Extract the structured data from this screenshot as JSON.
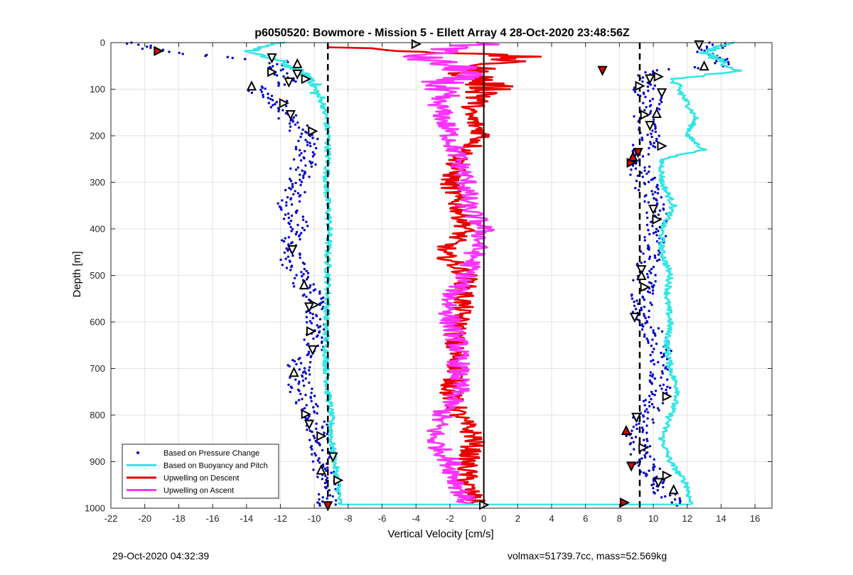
{
  "chart_data": {
    "type": "scatter",
    "title": "p6050520: Bowmore - Mission 5 - Ellett Array 4 28-Oct-2020 23:48:56Z",
    "xlabel": "Vertical Velocity [cm/s]",
    "ylabel": "Depth [m]",
    "xlim": [
      -22,
      17
    ],
    "ylim": [
      0,
      1000
    ],
    "y_reversed": true,
    "grid": true,
    "xticks": [
      "-22",
      "-20",
      "-18",
      "-16",
      "-14",
      "-12",
      "-10",
      "-8",
      "-6",
      "-4",
      "-2",
      "0",
      "2",
      "4",
      "6",
      "8",
      "10",
      "12",
      "14",
      "16"
    ],
    "yticks": [
      "0",
      "100",
      "200",
      "300",
      "400",
      "500",
      "600",
      "700",
      "800",
      "900",
      "1000"
    ],
    "legend_position": "bottom-left",
    "legend": [
      {
        "label": "Based on Pressure Change",
        "color": "#0000cc",
        "style": "dot"
      },
      {
        "label": "Based on Buoyancy and Pitch",
        "color": "#33e6e6",
        "style": "line"
      },
      {
        "label": "Upwelling on Descent",
        "color": "#e60000",
        "style": "line"
      },
      {
        "label": "Upwelling on Ascent",
        "color": "#ff33ff",
        "style": "line"
      }
    ],
    "vertical_reference_lines": [
      {
        "x": -9.2,
        "style": "dashed",
        "color": "#000000"
      },
      {
        "x": 0,
        "style": "solid",
        "color": "#000000"
      },
      {
        "x": 9.2,
        "style": "dashed",
        "color": "#000000"
      }
    ],
    "series": [
      {
        "name": "Based on Pressure Change (descent)",
        "color": "#0000cc",
        "depth": [
          0,
          20,
          40,
          60,
          80,
          100,
          130,
          160,
          200,
          250,
          300,
          350,
          400,
          450,
          500,
          550,
          600,
          650,
          700,
          750,
          800,
          850,
          900,
          950,
          990
        ],
        "velocity": [
          -21,
          -19,
          -12,
          -12.5,
          -11,
          -13.5,
          -12,
          -11.5,
          -10.5,
          -10.5,
          -11,
          -11.5,
          -11,
          -11.5,
          -11,
          -10,
          -9.8,
          -10,
          -11,
          -10.8,
          -10,
          -9.6,
          -9.5,
          -9.2,
          -9.2
        ]
      },
      {
        "name": "Based on Pressure Change (ascent)",
        "color": "#0000cc",
        "depth": [
          0,
          20,
          50,
          60,
          80,
          100,
          130,
          160,
          200,
          250,
          300,
          350,
          400,
          450,
          500,
          550,
          600,
          650,
          700,
          750,
          800,
          850,
          900,
          950,
          990
        ],
        "velocity": [
          14,
          13,
          14.5,
          9.5,
          10,
          9.5,
          10,
          9.5,
          9.8,
          9,
          9.5,
          10,
          10.3,
          9.8,
          9.5,
          9.4,
          9.5,
          10.5,
          10.5,
          10.5,
          9.5,
          9,
          9.5,
          10.5,
          11
        ]
      },
      {
        "name": "Based on Buoyancy and Pitch (descent)",
        "color": "#33e6e6",
        "depth": [
          0,
          20,
          40,
          60,
          80,
          100,
          130,
          160,
          200,
          250,
          300,
          350,
          400,
          450,
          500,
          550,
          600,
          650,
          700,
          750,
          800,
          850,
          900,
          950,
          990
        ],
        "velocity": [
          -12,
          -14,
          -12,
          -11,
          -10,
          -10,
          -9.5,
          -9.3,
          -9.2,
          -9.2,
          -9.3,
          -9.2,
          -9.1,
          -9.2,
          -9.2,
          -9.2,
          -9.3,
          -9.3,
          -9.3,
          -9.2,
          -9.0,
          -9.0,
          -8.8,
          -8.6,
          -8.5
        ]
      },
      {
        "name": "Based on Buoyancy and Pitch (ascent)",
        "color": "#33e6e6",
        "depth": [
          0,
          20,
          40,
          60,
          80,
          100,
          130,
          160,
          200,
          230,
          250,
          300,
          350,
          400,
          450,
          500,
          550,
          600,
          650,
          700,
          750,
          800,
          850,
          900,
          950,
          990
        ],
        "velocity": [
          14.5,
          13,
          14,
          15,
          11,
          11.5,
          12,
          12.5,
          12,
          13,
          10.5,
          10.5,
          11.2,
          10.5,
          10.5,
          11,
          10.8,
          11,
          10.8,
          11,
          11.5,
          11,
          10.5,
          11,
          12,
          12.2
        ]
      },
      {
        "name": "Upwelling on Descent",
        "color": "#e60000",
        "depth": [
          10,
          30,
          60,
          100,
          150,
          200,
          250,
          300,
          350,
          400,
          450,
          500,
          550,
          600,
          650,
          700,
          750,
          800,
          850,
          900,
          950,
          990
        ],
        "velocity": [
          -8,
          2,
          -1,
          0.5,
          -1,
          0,
          -1.5,
          -2,
          -1.5,
          -1,
          -2.5,
          -1,
          -1.2,
          -1.5,
          -1.8,
          -1.5,
          -2,
          -1.5,
          -0.5,
          -1,
          -1,
          -0.5
        ]
      },
      {
        "name": "Upwelling on Ascent",
        "color": "#ff33ff",
        "depth": [
          0,
          30,
          60,
          100,
          150,
          200,
          250,
          300,
          350,
          400,
          450,
          500,
          550,
          600,
          650,
          700,
          750,
          800,
          850,
          900,
          950,
          990
        ],
        "velocity": [
          0,
          -4,
          -1,
          -3,
          -2.5,
          -2,
          -1.5,
          -1,
          -1,
          0,
          -0.5,
          -1,
          -2,
          -2,
          -1.5,
          -1.5,
          -1.5,
          -2.5,
          -3,
          -2,
          -1.5,
          -1
        ]
      }
    ],
    "markers_descent": [
      {
        "velocity": -19.2,
        "depth": 18
      },
      {
        "velocity": -12.5,
        "depth": 33
      },
      {
        "velocity": -11,
        "depth": 45
      },
      {
        "velocity": -12.5,
        "depth": 63
      },
      {
        "velocity": -11,
        "depth": 68
      },
      {
        "velocity": -10.5,
        "depth": 78
      },
      {
        "velocity": -11.5,
        "depth": 85
      },
      {
        "velocity": -13.7,
        "depth": 93
      },
      {
        "velocity": -11.8,
        "depth": 130
      },
      {
        "velocity": -11.4,
        "depth": 155
      },
      {
        "velocity": -10.1,
        "depth": 190
      },
      {
        "velocity": -11.3,
        "depth": 445
      },
      {
        "velocity": -10.6,
        "depth": 520
      },
      {
        "velocity": -10,
        "depth": 563
      },
      {
        "velocity": -10.3,
        "depth": 568
      },
      {
        "velocity": -10.2,
        "depth": 620
      },
      {
        "velocity": -10.1,
        "depth": 660
      },
      {
        "velocity": -11.2,
        "depth": 708
      },
      {
        "velocity": -10.5,
        "depth": 798
      },
      {
        "velocity": -10.3,
        "depth": 820
      },
      {
        "velocity": -9.6,
        "depth": 845
      },
      {
        "velocity": -8.9,
        "depth": 890
      },
      {
        "velocity": -9.6,
        "depth": 918
      },
      {
        "velocity": -8.6,
        "depth": 940
      },
      {
        "velocity": -9.2,
        "depth": 995
      },
      {
        "velocity": -4,
        "depth": 3
      }
    ],
    "markers_ascent": [
      {
        "velocity": 12.7,
        "depth": 5
      },
      {
        "velocity": 13,
        "depth": 50
      },
      {
        "velocity": 10.3,
        "depth": 73
      },
      {
        "velocity": 9.8,
        "depth": 78
      },
      {
        "velocity": 9.2,
        "depth": 93
      },
      {
        "velocity": 10.5,
        "depth": 108
      },
      {
        "velocity": 10.2,
        "depth": 152
      },
      {
        "velocity": 9.5,
        "depth": 155
      },
      {
        "velocity": 9.8,
        "depth": 178
      },
      {
        "velocity": 10.5,
        "depth": 222
      },
      {
        "velocity": 9.1,
        "depth": 236
      },
      {
        "velocity": 8.8,
        "depth": 245
      },
      {
        "velocity": 8.7,
        "depth": 258
      },
      {
        "velocity": 10,
        "depth": 358
      },
      {
        "velocity": 10.2,
        "depth": 380
      },
      {
        "velocity": 9.3,
        "depth": 488
      },
      {
        "velocity": 9.3,
        "depth": 500
      },
      {
        "velocity": 9.5,
        "depth": 525
      },
      {
        "velocity": 8.9,
        "depth": 590
      },
      {
        "velocity": 10.8,
        "depth": 760
      },
      {
        "velocity": 9,
        "depth": 805
      },
      {
        "velocity": 8.4,
        "depth": 833
      },
      {
        "velocity": 9.4,
        "depth": 870
      },
      {
        "velocity": 8.7,
        "depth": 910
      },
      {
        "velocity": 10.8,
        "depth": 930
      },
      {
        "velocity": 10.3,
        "depth": 945
      },
      {
        "velocity": 11.2,
        "depth": 960
      },
      {
        "velocity": 8.3,
        "depth": 988
      },
      {
        "velocity": 7,
        "depth": 60
      },
      {
        "velocity": 0,
        "depth": 993
      }
    ]
  },
  "footer": {
    "timestamp": "29-Oct-2020 04:32:39",
    "volmax_mass": "volmax=51739.7cc, mass=52.569kg"
  }
}
